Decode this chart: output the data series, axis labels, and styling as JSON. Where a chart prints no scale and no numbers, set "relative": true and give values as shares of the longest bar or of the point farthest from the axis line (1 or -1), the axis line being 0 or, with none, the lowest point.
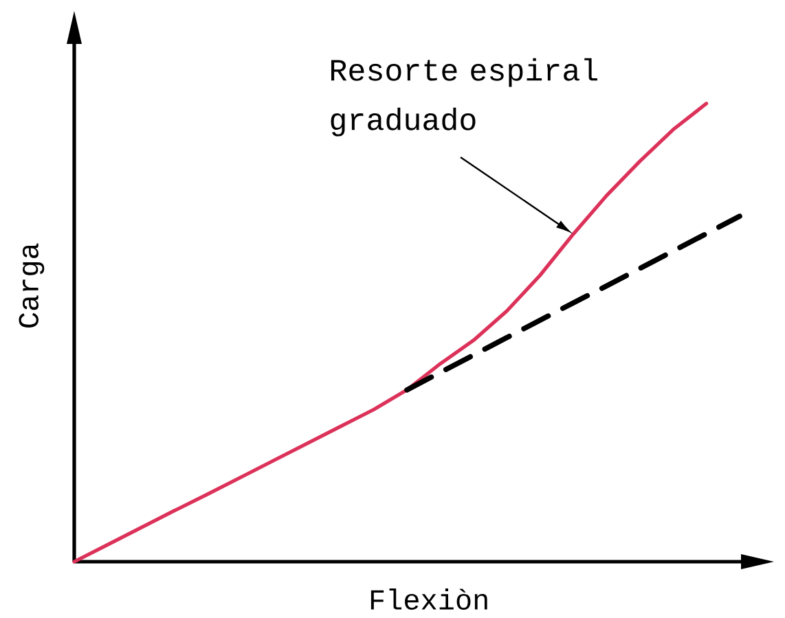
{
  "chart_data": {
    "type": "line",
    "xlabel": "Flexiòn",
    "ylabel": "Carga",
    "relative": true,
    "categories": [
      null,
      null,
      null,
      null,
      null,
      null,
      null,
      null,
      null,
      null,
      null,
      null,
      null,
      null,
      null,
      null,
      null,
      null,
      null,
      null,
      null
    ],
    "series": [
      {
        "name": "Resorte espiral graduado",
        "color": "#dc325a",
        "line_style": "solid",
        "values": [
          0,
          0.037,
          0.074,
          0.111,
          0.147,
          0.184,
          0.221,
          0.258,
          0.295,
          0.332,
          0.375,
          0.432,
          0.483,
          0.547,
          0.625,
          0.715,
          0.799,
          0.874,
          0.943,
          1,
          null
        ]
      },
      {
        "color": "#000000",
        "line_style": "dashed",
        "values": [
          null,
          null,
          null,
          null,
          null,
          null,
          null,
          null,
          null,
          null,
          0.375,
          0.413,
          0.451,
          0.489,
          0.527,
          0.565,
          0.602,
          0.64,
          0.678,
          0.716,
          0.754
        ]
      }
    ]
  }
}
